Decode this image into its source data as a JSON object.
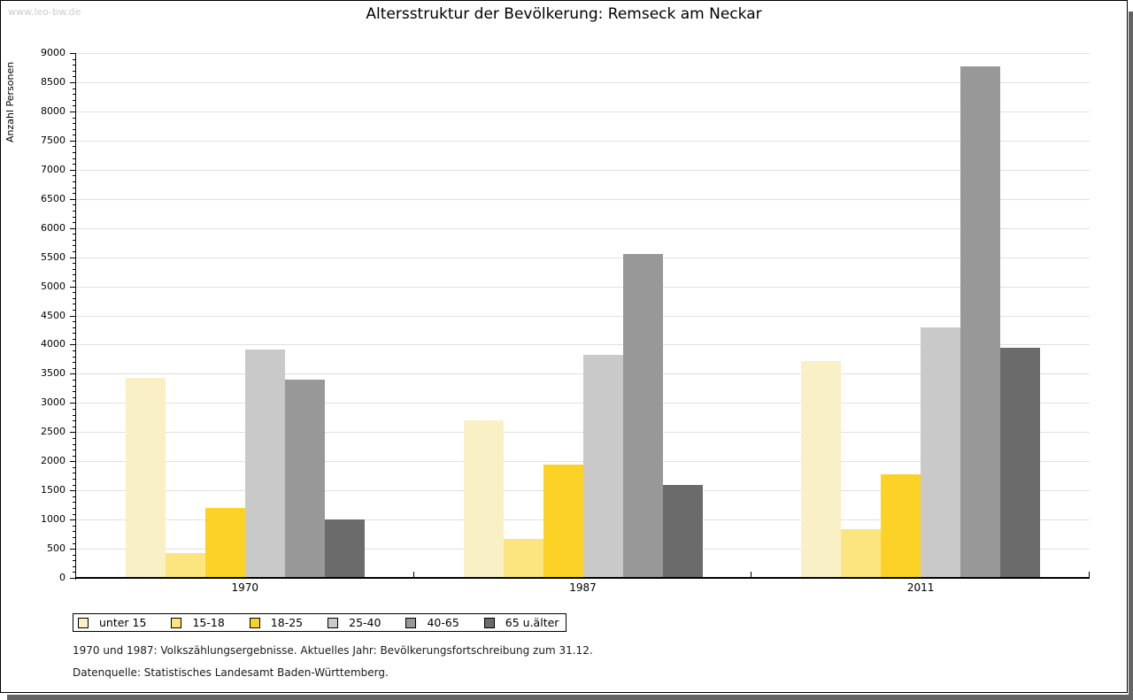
{
  "watermark": "www.leo-bw.de",
  "chart_data": {
    "type": "bar",
    "title": "Altersstruktur der Bevölkerung: Remseck am Neckar",
    "ylabel": "Anzahl Personen",
    "xlabel": "",
    "categories": [
      "1970",
      "1987",
      "2011"
    ],
    "series": [
      {
        "name": "unter 15",
        "color": "#FAF0C6",
        "values": [
          3430,
          2700,
          3720
        ]
      },
      {
        "name": "15-18",
        "color": "#FCE47E",
        "values": [
          430,
          670,
          830
        ]
      },
      {
        "name": "18-25",
        "color": "#FCD226",
        "values": [
          1200,
          1940,
          1780
        ]
      },
      {
        "name": "25-40",
        "color": "#C9C9C9",
        "values": [
          3910,
          3820,
          4290
        ]
      },
      {
        "name": "40-65",
        "color": "#989898",
        "values": [
          3400,
          5560,
          8780
        ]
      },
      {
        "name": "65 u.älter",
        "color": "#6B6B6B",
        "values": [
          1010,
          1590,
          3950
        ]
      }
    ],
    "ylim": [
      0,
      9000
    ],
    "ytick_major": 500,
    "ytick_minor": 100,
    "grid": true,
    "legend_position": "bottom-left"
  },
  "colors": {
    "gridline": "#E0E0E0",
    "axis": "#000000",
    "shadow": "#646464",
    "watermark": "#CCCCCC"
  },
  "footer": {
    "line1": "1970 und 1987: Volkszählungsergebnisse. Aktuelles Jahr: Bevölkerungsfortschreibung zum 31.12.",
    "line2": "Datenquelle: Statistisches Landesamt Baden-Württemberg."
  }
}
